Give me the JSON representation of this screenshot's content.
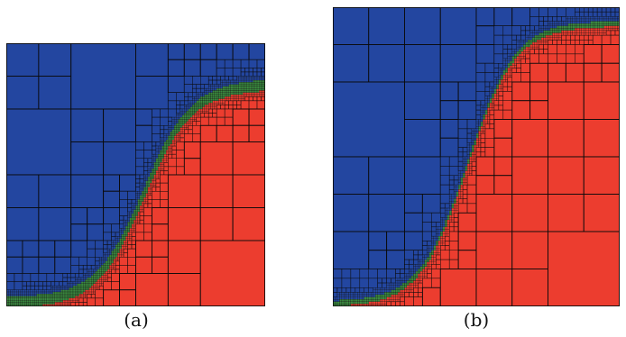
{
  "figure": {
    "panels": [
      {
        "id": "a",
        "caption": "(a)"
      },
      {
        "id": "b",
        "caption": "(b)"
      }
    ]
  },
  "colors": {
    "outside": "#2346a0",
    "inside": "#ec3d2f",
    "interface": "#3a8a3f",
    "grid": "#0a0a0a"
  }
}
